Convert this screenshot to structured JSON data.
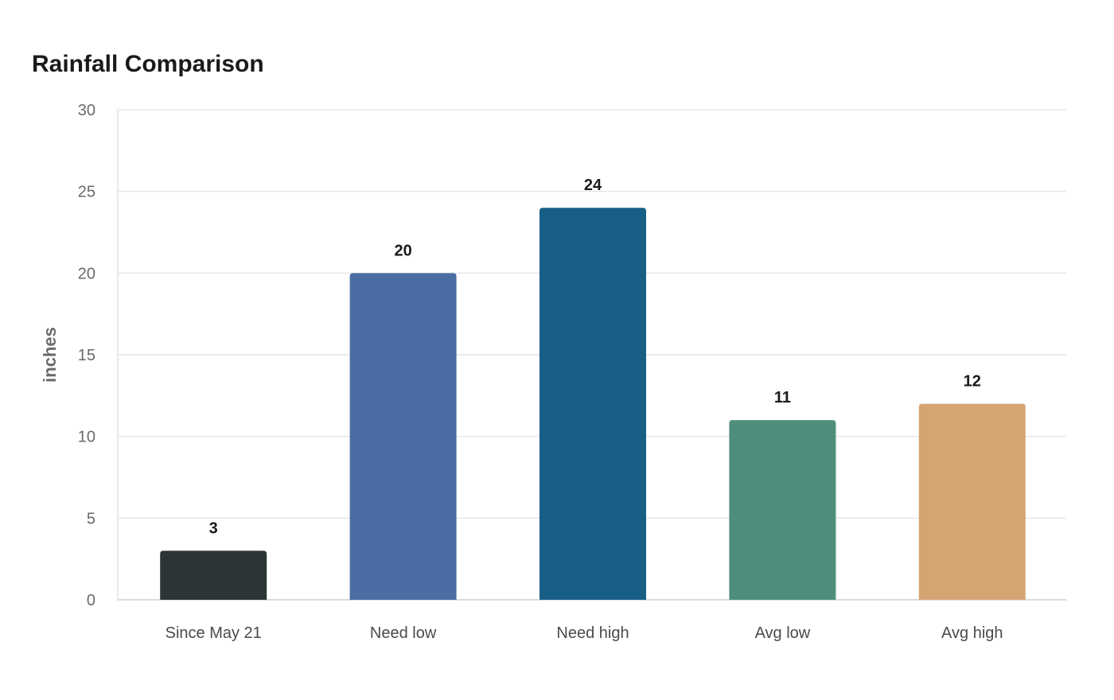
{
  "chart_data": {
    "type": "bar",
    "title": "Rainfall Comparison",
    "xlabel": "",
    "ylabel": "inches",
    "ylim": [
      0,
      30
    ],
    "yticks": [
      0,
      5,
      10,
      15,
      20,
      25,
      30
    ],
    "grid": true,
    "legend": "none",
    "categories": [
      "Since May 21",
      "Need low",
      "Need high",
      "Avg low",
      "Avg high"
    ],
    "values": [
      3,
      20,
      24,
      11,
      12
    ],
    "colors": [
      "#2d3436",
      "#4a6da3",
      "#175f86",
      "#4f8e7c",
      "#d4a473"
    ]
  }
}
